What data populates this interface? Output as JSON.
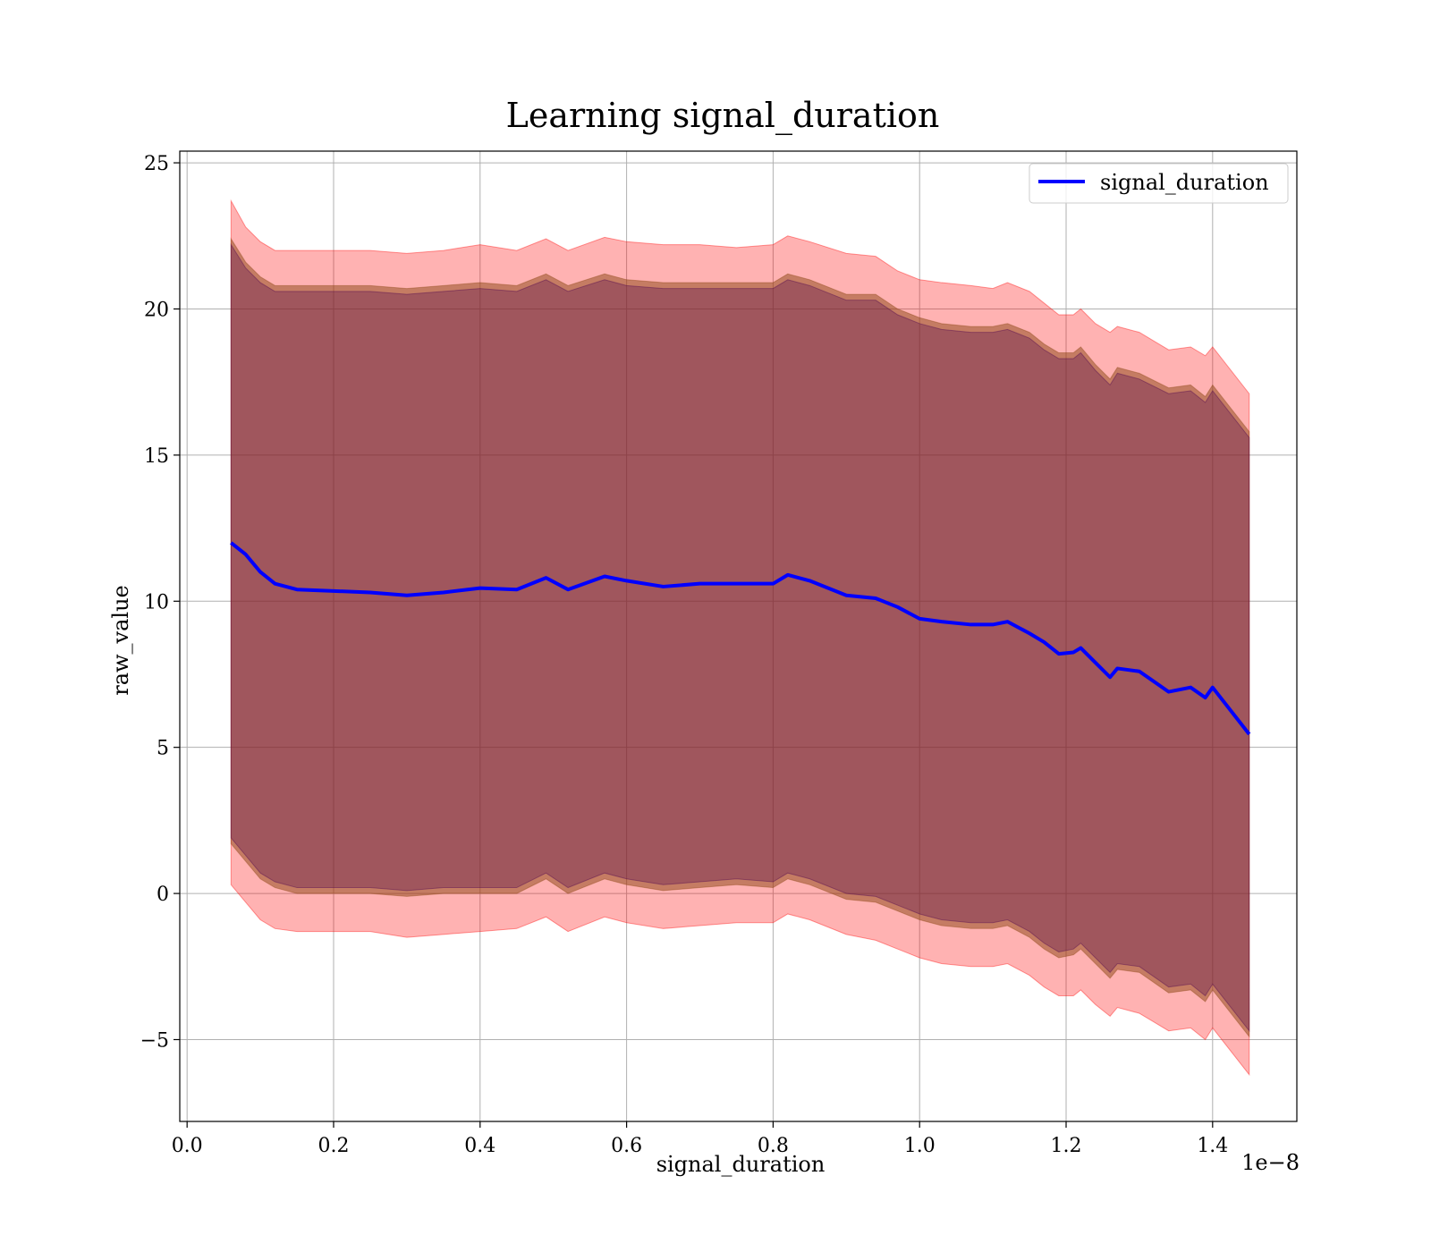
{
  "chart_data": {
    "type": "line",
    "title": "Learning signal_duration",
    "xlabel": "signal_duration",
    "ylabel": "raw_value",
    "x_offset_text": "1e−8",
    "xlim": [
      -0.01,
      1.515
    ],
    "ylim": [
      -7.8,
      25.4
    ],
    "xticks": [
      0.0,
      0.2,
      0.4,
      0.6,
      0.8,
      1.0,
      1.2,
      1.4
    ],
    "xtick_labels": [
      "0.0",
      "0.2",
      "0.4",
      "0.6",
      "0.8",
      "1.0",
      "1.2",
      "1.4"
    ],
    "yticks": [
      -5,
      0,
      5,
      10,
      15,
      20,
      25
    ],
    "ytick_labels": [
      "−5",
      "0",
      "5",
      "10",
      "15",
      "20",
      "25"
    ],
    "grid": true,
    "legend_position": "top-right",
    "colors": {
      "line": "#0000ff",
      "outer_band": "#ff0000",
      "middle_band": "#8b4513",
      "inner_band": "#4b0050"
    },
    "series": [
      {
        "name": "signal_duration",
        "x": [
          0.06,
          0.08,
          0.1,
          0.12,
          0.15,
          0.2,
          0.25,
          0.3,
          0.35,
          0.4,
          0.45,
          0.49,
          0.52,
          0.57,
          0.6,
          0.65,
          0.7,
          0.75,
          0.8,
          0.82,
          0.85,
          0.9,
          0.94,
          0.97,
          1.0,
          1.03,
          1.07,
          1.1,
          1.12,
          1.15,
          1.17,
          1.19,
          1.21,
          1.22,
          1.24,
          1.26,
          1.27,
          1.3,
          1.34,
          1.37,
          1.39,
          1.4,
          1.45
        ],
        "y": [
          12.0,
          11.6,
          11.0,
          10.6,
          10.4,
          10.35,
          10.3,
          10.2,
          10.3,
          10.45,
          10.4,
          10.8,
          10.4,
          10.85,
          10.7,
          10.5,
          10.6,
          10.6,
          10.6,
          10.9,
          10.7,
          10.2,
          10.1,
          9.8,
          9.4,
          9.3,
          9.2,
          9.2,
          9.3,
          8.9,
          8.6,
          8.2,
          8.25,
          8.4,
          7.9,
          7.4,
          7.7,
          7.6,
          6.9,
          7.05,
          6.7,
          7.05,
          5.45
        ]
      }
    ],
    "bands": [
      {
        "role": "outer",
        "upper": [
          23.7,
          22.8,
          22.3,
          22.0,
          22.0,
          22.0,
          22.0,
          21.9,
          22.0,
          22.2,
          22.0,
          22.4,
          22.0,
          22.45,
          22.3,
          22.2,
          22.2,
          22.1,
          22.2,
          22.5,
          22.3,
          21.9,
          21.8,
          21.3,
          21.0,
          20.9,
          20.8,
          20.7,
          20.9,
          20.6,
          20.2,
          19.8,
          19.8,
          20.0,
          19.5,
          19.2,
          19.4,
          19.2,
          18.6,
          18.7,
          18.4,
          18.7,
          17.1
        ],
        "lower": [
          0.3,
          -0.3,
          -0.9,
          -1.2,
          -1.3,
          -1.3,
          -1.3,
          -1.5,
          -1.4,
          -1.3,
          -1.2,
          -0.8,
          -1.3,
          -0.8,
          -1.0,
          -1.2,
          -1.1,
          -1.0,
          -1.0,
          -0.7,
          -0.9,
          -1.4,
          -1.6,
          -1.9,
          -2.2,
          -2.4,
          -2.5,
          -2.5,
          -2.4,
          -2.8,
          -3.2,
          -3.5,
          -3.5,
          -3.3,
          -3.8,
          -4.2,
          -3.9,
          -4.1,
          -4.7,
          -4.6,
          -5.0,
          -4.6,
          -6.2
        ]
      },
      {
        "role": "middle",
        "upper": [
          22.4,
          21.6,
          21.1,
          20.8,
          20.8,
          20.8,
          20.8,
          20.7,
          20.8,
          20.9,
          20.8,
          21.2,
          20.8,
          21.2,
          21.0,
          20.9,
          20.9,
          20.9,
          20.9,
          21.2,
          21.0,
          20.5,
          20.5,
          20.0,
          19.7,
          19.5,
          19.4,
          19.4,
          19.5,
          19.2,
          18.8,
          18.5,
          18.5,
          18.7,
          18.1,
          17.6,
          18.0,
          17.8,
          17.3,
          17.4,
          17.0,
          17.4,
          15.8
        ],
        "lower": [
          1.7,
          1.1,
          0.5,
          0.2,
          0.0,
          0.0,
          0.0,
          -0.1,
          0.0,
          0.0,
          0.0,
          0.5,
          0.0,
          0.5,
          0.3,
          0.1,
          0.2,
          0.3,
          0.2,
          0.5,
          0.3,
          -0.2,
          -0.3,
          -0.6,
          -0.9,
          -1.1,
          -1.2,
          -1.2,
          -1.1,
          -1.5,
          -1.9,
          -2.2,
          -2.1,
          -1.9,
          -2.4,
          -2.9,
          -2.6,
          -2.7,
          -3.4,
          -3.3,
          -3.7,
          -3.3,
          -4.9
        ]
      },
      {
        "role": "inner",
        "upper": [
          22.2,
          21.4,
          20.9,
          20.6,
          20.6,
          20.6,
          20.6,
          20.5,
          20.6,
          20.7,
          20.6,
          21.0,
          20.6,
          21.0,
          20.8,
          20.7,
          20.7,
          20.7,
          20.7,
          21.0,
          20.8,
          20.3,
          20.3,
          19.8,
          19.5,
          19.3,
          19.2,
          19.2,
          19.3,
          19.0,
          18.6,
          18.3,
          18.3,
          18.5,
          17.9,
          17.4,
          17.8,
          17.6,
          17.1,
          17.2,
          16.8,
          17.2,
          15.6
        ],
        "lower": [
          1.9,
          1.3,
          0.7,
          0.4,
          0.2,
          0.2,
          0.2,
          0.1,
          0.2,
          0.2,
          0.2,
          0.7,
          0.2,
          0.7,
          0.5,
          0.3,
          0.4,
          0.5,
          0.4,
          0.7,
          0.5,
          0.0,
          -0.1,
          -0.4,
          -0.7,
          -0.9,
          -1.0,
          -1.0,
          -0.9,
          -1.3,
          -1.7,
          -2.0,
          -1.9,
          -1.7,
          -2.2,
          -2.7,
          -2.4,
          -2.5,
          -3.2,
          -3.1,
          -3.5,
          -3.1,
          -4.7
        ]
      }
    ]
  }
}
